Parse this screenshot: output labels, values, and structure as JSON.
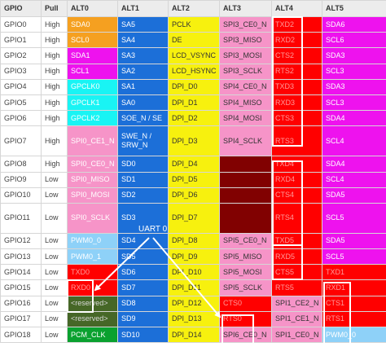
{
  "columns": [
    "GPIO",
    "Pull",
    "ALT0",
    "ALT1",
    "ALT2",
    "ALT3",
    "ALT4",
    "ALT5"
  ],
  "palette": {
    "orange": "#f5a020",
    "magenta": "#ee12ee",
    "cyan": "#19f4f4",
    "light_blue": "#8ed1f8",
    "olive": "#466727",
    "green": "#0aa12f",
    "blue": "#1c6fd8",
    "yellow": "#f7f10e",
    "pink": "#f694c8",
    "maroon": "#810101",
    "red": "#ff0000",
    "white": "#ffffff"
  },
  "annotation": {
    "label": "UART 0"
  },
  "rows": [
    {
      "gpio": "GPIO0",
      "pull": "High",
      "cells": [
        {
          "t": "SDA0",
          "c": "orange"
        },
        {
          "t": "SA5",
          "c": "blue"
        },
        {
          "t": "PCLK",
          "c": "yellow",
          "dark": true
        },
        {
          "t": "SPI3_CE0_N",
          "c": "pink",
          "dark": true
        },
        {
          "t": "TXD2",
          "c": "red",
          "faded": true
        },
        {
          "t": "SDA6",
          "c": "magenta"
        }
      ]
    },
    {
      "gpio": "GPIO1",
      "pull": "High",
      "cells": [
        {
          "t": "SCL0",
          "c": "orange"
        },
        {
          "t": "SA4",
          "c": "blue"
        },
        {
          "t": "DE",
          "c": "yellow",
          "dark": true
        },
        {
          "t": "SPI3_MISO",
          "c": "pink",
          "dark": true
        },
        {
          "t": "RXD2",
          "c": "red",
          "faded": true
        },
        {
          "t": "SCL6",
          "c": "magenta"
        }
      ]
    },
    {
      "gpio": "GPIO2",
      "pull": "High",
      "cells": [
        {
          "t": "SDA1",
          "c": "magenta"
        },
        {
          "t": "SA3",
          "c": "blue"
        },
        {
          "t": "LCD_VSYNC",
          "c": "yellow",
          "dark": true
        },
        {
          "t": "SPI3_MOSI",
          "c": "pink",
          "dark": true
        },
        {
          "t": "CTS2",
          "c": "red",
          "faded": true
        },
        {
          "t": "SDA3",
          "c": "magenta"
        }
      ]
    },
    {
      "gpio": "GPIO3",
      "pull": "High",
      "cells": [
        {
          "t": "SCL1",
          "c": "magenta"
        },
        {
          "t": "SA2",
          "c": "blue"
        },
        {
          "t": "LCD_HSYNC",
          "c": "yellow",
          "dark": true
        },
        {
          "t": "SPI3_SCLK",
          "c": "pink",
          "dark": true
        },
        {
          "t": "RTS2",
          "c": "red",
          "faded": true
        },
        {
          "t": "SCL3",
          "c": "magenta"
        }
      ]
    },
    {
      "gpio": "GPIO4",
      "pull": "High",
      "cells": [
        {
          "t": "GPCLK0",
          "c": "cyan"
        },
        {
          "t": "SA1",
          "c": "blue"
        },
        {
          "t": "DPI_D0",
          "c": "yellow",
          "dark": true
        },
        {
          "t": "SPI4_CE0_N",
          "c": "pink",
          "dark": true
        },
        {
          "t": "TXD3",
          "c": "red",
          "faded": true
        },
        {
          "t": "SDA3",
          "c": "magenta"
        }
      ]
    },
    {
      "gpio": "GPIO5",
      "pull": "High",
      "cells": [
        {
          "t": "GPCLK1",
          "c": "cyan"
        },
        {
          "t": "SA0",
          "c": "blue"
        },
        {
          "t": "DPI_D1",
          "c": "yellow",
          "dark": true
        },
        {
          "t": "SPI4_MISO",
          "c": "pink",
          "dark": true
        },
        {
          "t": "RXD3",
          "c": "red",
          "faded": true
        },
        {
          "t": "SCL3",
          "c": "magenta"
        }
      ]
    },
    {
      "gpio": "GPIO6",
      "pull": "High",
      "cells": [
        {
          "t": "GPCLK2",
          "c": "cyan"
        },
        {
          "t": "SOE_N / SE",
          "c": "blue"
        },
        {
          "t": "DPI_D2",
          "c": "yellow",
          "dark": true
        },
        {
          "t": "SPI4_MOSI",
          "c": "pink",
          "dark": true
        },
        {
          "t": "CTS3",
          "c": "red",
          "faded": true
        },
        {
          "t": "SDA4",
          "c": "magenta"
        }
      ]
    },
    {
      "gpio": "GPIO7",
      "pull": "High",
      "tall": true,
      "cells": [
        {
          "t": "SPI0_CE1_N",
          "c": "pink"
        },
        {
          "t": "SWE_N / SRW_N",
          "c": "blue",
          "wrap": true
        },
        {
          "t": "DPI_D3",
          "c": "yellow",
          "dark": true
        },
        {
          "t": "SPI4_SCLK",
          "c": "pink",
          "dark": true
        },
        {
          "t": "RTS3",
          "c": "red",
          "faded": true
        },
        {
          "t": "SCL4",
          "c": "magenta"
        }
      ]
    },
    {
      "gpio": "GPIO8",
      "pull": "High",
      "cells": [
        {
          "t": "SPI0_CE0_N",
          "c": "pink"
        },
        {
          "t": "SD0",
          "c": "blue"
        },
        {
          "t": "DPI_D4",
          "c": "yellow",
          "dark": true
        },
        {
          "t": "",
          "c": "maroon"
        },
        {
          "t": "TXD4",
          "c": "red",
          "faded": true
        },
        {
          "t": "SDA4",
          "c": "magenta"
        }
      ]
    },
    {
      "gpio": "GPIO9",
      "pull": "Low",
      "cells": [
        {
          "t": "SPI0_MISO",
          "c": "pink"
        },
        {
          "t": "SD1",
          "c": "blue"
        },
        {
          "t": "DPI_D5",
          "c": "yellow",
          "dark": true
        },
        {
          "t": "",
          "c": "maroon"
        },
        {
          "t": "RXD4",
          "c": "red",
          "faded": true
        },
        {
          "t": "SCL4",
          "c": "magenta"
        }
      ]
    },
    {
      "gpio": "GPIO10",
      "pull": "Low",
      "cells": [
        {
          "t": "SPI0_MOSI",
          "c": "pink"
        },
        {
          "t": "SD2",
          "c": "blue"
        },
        {
          "t": "DPI_D6",
          "c": "yellow",
          "dark": true
        },
        {
          "t": "",
          "c": "maroon"
        },
        {
          "t": "CTS4",
          "c": "red",
          "faded": true
        },
        {
          "t": "SDA5",
          "c": "magenta"
        }
      ]
    },
    {
      "gpio": "GPIO11",
      "pull": "Low",
      "tall": true,
      "cells": [
        {
          "t": "SPI0_SCLK",
          "c": "pink"
        },
        {
          "t": "SD3",
          "c": "blue"
        },
        {
          "t": "DPI_D7",
          "c": "yellow",
          "dark": true
        },
        {
          "t": "",
          "c": "maroon"
        },
        {
          "t": "RTS4",
          "c": "red",
          "faded": true
        },
        {
          "t": "SCL5",
          "c": "magenta"
        }
      ]
    },
    {
      "gpio": "GPIO12",
      "pull": "Low",
      "cells": [
        {
          "t": "PWM0_0",
          "c": "light_blue"
        },
        {
          "t": "SD4",
          "c": "blue"
        },
        {
          "t": "DPI_D8",
          "c": "yellow",
          "dark": true
        },
        {
          "t": "SPI5_CE0_N",
          "c": "pink",
          "dark": true
        },
        {
          "t": "TXD5",
          "c": "red",
          "faded": true
        },
        {
          "t": "SDA5",
          "c": "magenta"
        }
      ]
    },
    {
      "gpio": "GPIO13",
      "pull": "Low",
      "cells": [
        {
          "t": "PWM0_1",
          "c": "light_blue"
        },
        {
          "t": "SD5",
          "c": "blue"
        },
        {
          "t": "DPI_D9",
          "c": "yellow",
          "dark": true
        },
        {
          "t": "SPI5_MISO",
          "c": "pink",
          "dark": true
        },
        {
          "t": "RXD5",
          "c": "red",
          "faded": true
        },
        {
          "t": "SCL5",
          "c": "magenta"
        }
      ]
    },
    {
      "gpio": "GPIO14",
      "pull": "Low",
      "cells": [
        {
          "t": "TXD0",
          "c": "red",
          "faded": true
        },
        {
          "t": "SD6",
          "c": "blue"
        },
        {
          "t": "DPI_D10",
          "c": "yellow",
          "dark": true
        },
        {
          "t": "SPI5_MOSI",
          "c": "pink",
          "dark": true
        },
        {
          "t": "CTS5",
          "c": "red",
          "faded": true
        },
        {
          "t": "TXD1",
          "c": "red",
          "faded": true
        }
      ]
    },
    {
      "gpio": "GPIO15",
      "pull": "Low",
      "cells": [
        {
          "t": "RXD0",
          "c": "red",
          "faded": true
        },
        {
          "t": "SD7",
          "c": "blue"
        },
        {
          "t": "DPI_D11",
          "c": "yellow",
          "dark": true
        },
        {
          "t": "SPI5_SCLK",
          "c": "pink",
          "dark": true
        },
        {
          "t": "RTS5",
          "c": "red",
          "faded": true
        },
        {
          "t": "RXD1",
          "c": "red",
          "faded": true
        }
      ]
    },
    {
      "gpio": "GPIO16",
      "pull": "Low",
      "cells": [
        {
          "t": "<reserved>",
          "c": "olive",
          "soft": true
        },
        {
          "t": "SD8",
          "c": "blue"
        },
        {
          "t": "DPI_D12",
          "c": "yellow",
          "dark": true
        },
        {
          "t": "CTS0",
          "c": "red",
          "faded": true
        },
        {
          "t": "SPI1_CE2_N",
          "c": "pink",
          "dark": true
        },
        {
          "t": "CTS1",
          "c": "red",
          "faded": true
        }
      ]
    },
    {
      "gpio": "GPIO17",
      "pull": "Low",
      "cells": [
        {
          "t": "<reserved>",
          "c": "olive",
          "soft": true
        },
        {
          "t": "SD9",
          "c": "blue"
        },
        {
          "t": "DPI_D13",
          "c": "yellow",
          "dark": true
        },
        {
          "t": "RTS0",
          "c": "red",
          "faded": true
        },
        {
          "t": "SPI1_CE1_N",
          "c": "pink",
          "dark": true
        },
        {
          "t": "RTS1",
          "c": "red",
          "faded": true
        }
      ]
    },
    {
      "gpio": "GPIO18",
      "pull": "Low",
      "cells": [
        {
          "t": "PCM_CLK",
          "c": "green"
        },
        {
          "t": "SD10",
          "c": "blue"
        },
        {
          "t": "DPI_D14",
          "c": "yellow",
          "dark": true
        },
        {
          "t": "SPI6_CE0_N",
          "c": "pink",
          "dark": true
        },
        {
          "t": "SPI1_CE0_N",
          "c": "pink",
          "dark": true
        },
        {
          "t": "PWM0_0",
          "c": "light_blue"
        }
      ]
    }
  ]
}
